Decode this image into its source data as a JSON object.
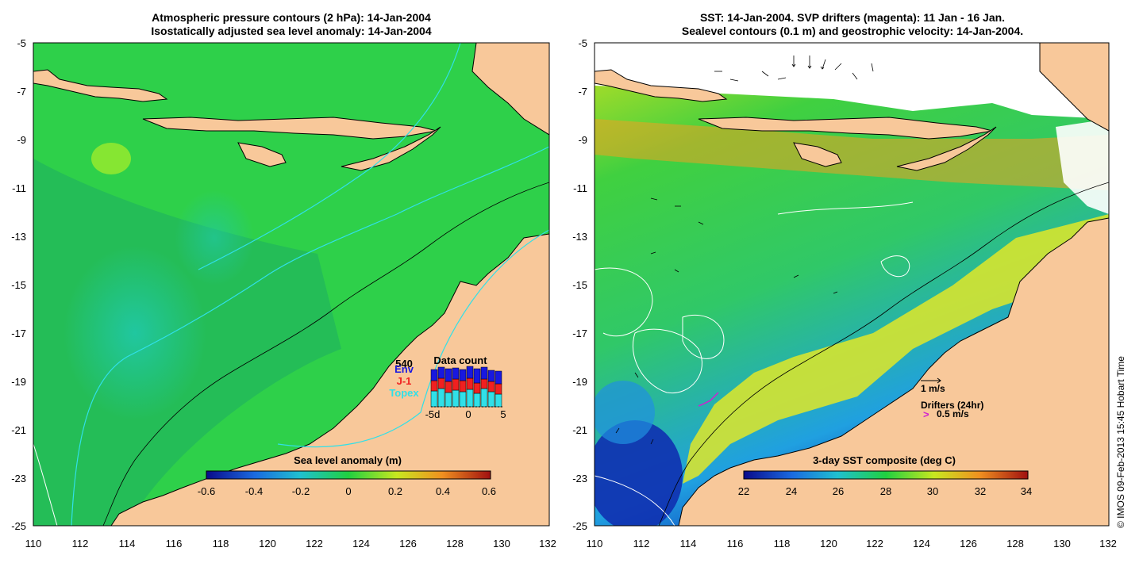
{
  "left_panel": {
    "title_line1": "Atmospheric pressure contours (2 hPa): 14-Jan-2004",
    "title_line2": "Isostatically adjusted sea level anomaly: 14-Jan-2004",
    "y_ticks": [
      "-5",
      "-7",
      "-9",
      "-11",
      "-13",
      "-15",
      "-17",
      "-19",
      "-21",
      "-23",
      "-25"
    ],
    "x_ticks": [
      "110",
      "112",
      "114",
      "116",
      "118",
      "120",
      "122",
      "124",
      "126",
      "128",
      "130",
      "132"
    ],
    "colorbar": {
      "title": "Sea level anomaly (m)",
      "ticks": [
        "-0.6",
        "-0.4",
        "-0.2",
        "0",
        "0.2",
        "0.4",
        "0.6"
      ]
    },
    "data_count": {
      "title": "Data count",
      "total": "540",
      "legend": [
        "Env",
        "J-1",
        "Topex"
      ],
      "x_ticks": [
        "-5d",
        "0",
        "5"
      ]
    }
  },
  "right_panel": {
    "title_line1": "SST: 14-Jan-2004. SVP drifters (magenta): 11 Jan - 16 Jan.",
    "title_line2": "Sealevel contours (0.1 m) and geostrophic velocity: 14-Jan-2004.",
    "y_ticks": [
      "-5",
      "-7",
      "-9",
      "-11",
      "-13",
      "-15",
      "-17",
      "-19",
      "-21",
      "-23",
      "-25"
    ],
    "x_ticks": [
      "110",
      "112",
      "114",
      "116",
      "118",
      "120",
      "122",
      "124",
      "126",
      "128",
      "130",
      "132"
    ],
    "colorbar": {
      "title": "3-day SST composite (deg C)",
      "ticks": [
        "22",
        "24",
        "26",
        "28",
        "30",
        "32",
        "34"
      ]
    },
    "velocity_key": "1 m/s",
    "drifters_key": "Drifters (24hr)",
    "drifters_speed": "0.5 m/s"
  },
  "credit": "© IMOS 09-Feb-2013 15:45 Hobart Time",
  "colors": {
    "land": "#f8c89a",
    "ocean_green": "#2ed04a",
    "contour_cyan": "#30e0e8",
    "data_count_env": "#1818e0",
    "data_count_j1": "#f02020",
    "data_count_topex": "#30e0e8",
    "drifter_magenta": "#d020d0"
  }
}
